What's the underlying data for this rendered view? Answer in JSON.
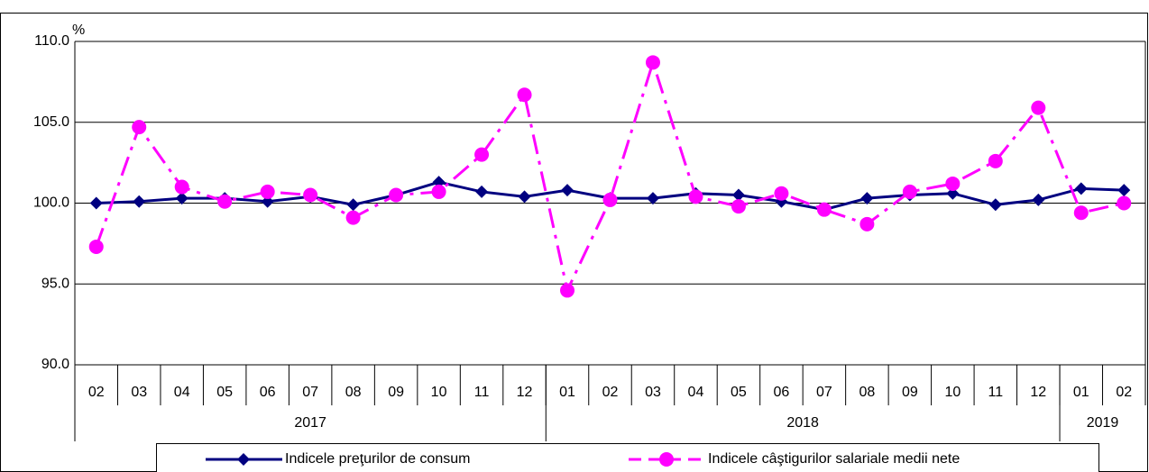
{
  "chart_data": {
    "type": "line",
    "y_label": "%",
    "categories": [
      "02",
      "03",
      "04",
      "05",
      "06",
      "07",
      "08",
      "09",
      "10",
      "11",
      "12",
      "01",
      "02",
      "03",
      "04",
      "05",
      "06",
      "07",
      "08",
      "09",
      "10",
      "11",
      "12",
      "01",
      "02"
    ],
    "years": [
      "2017",
      "2018",
      "2019"
    ],
    "series": [
      {
        "name": "Indicele preţurilor de consum",
        "color": "#000080",
        "marker": "diamond",
        "dash": "solid",
        "values": [
          100.0,
          100.1,
          100.3,
          100.3,
          100.1,
          100.4,
          99.9,
          100.5,
          101.3,
          100.7,
          100.4,
          100.8,
          100.3,
          100.3,
          100.6,
          100.5,
          100.1,
          99.6,
          100.3,
          100.5,
          100.6,
          99.9,
          100.2,
          100.9,
          100.8
        ]
      },
      {
        "name": "Indicele câştigurilor salariale medii nete",
        "color": "#ff00ff",
        "marker": "circle",
        "dash": "dashdot",
        "values": [
          97.3,
          104.7,
          101.0,
          100.1,
          100.7,
          100.5,
          99.1,
          100.5,
          100.7,
          103.0,
          106.7,
          94.6,
          100.2,
          108.7,
          100.4,
          99.8,
          100.6,
          99.6,
          98.7,
          100.7,
          101.2,
          102.6,
          105.9,
          99.4,
          100.0
        ]
      }
    ],
    "ylim": [
      90,
      110
    ],
    "yticks": [
      {
        "value": 90,
        "label": "90.0"
      },
      {
        "value": 95,
        "label": "95.0"
      },
      {
        "value": 100,
        "label": "100.0"
      },
      {
        "value": 105,
        "label": "105.0"
      },
      {
        "value": 110,
        "label": "110.0"
      }
    ],
    "grid": true,
    "legend": "bottom"
  }
}
